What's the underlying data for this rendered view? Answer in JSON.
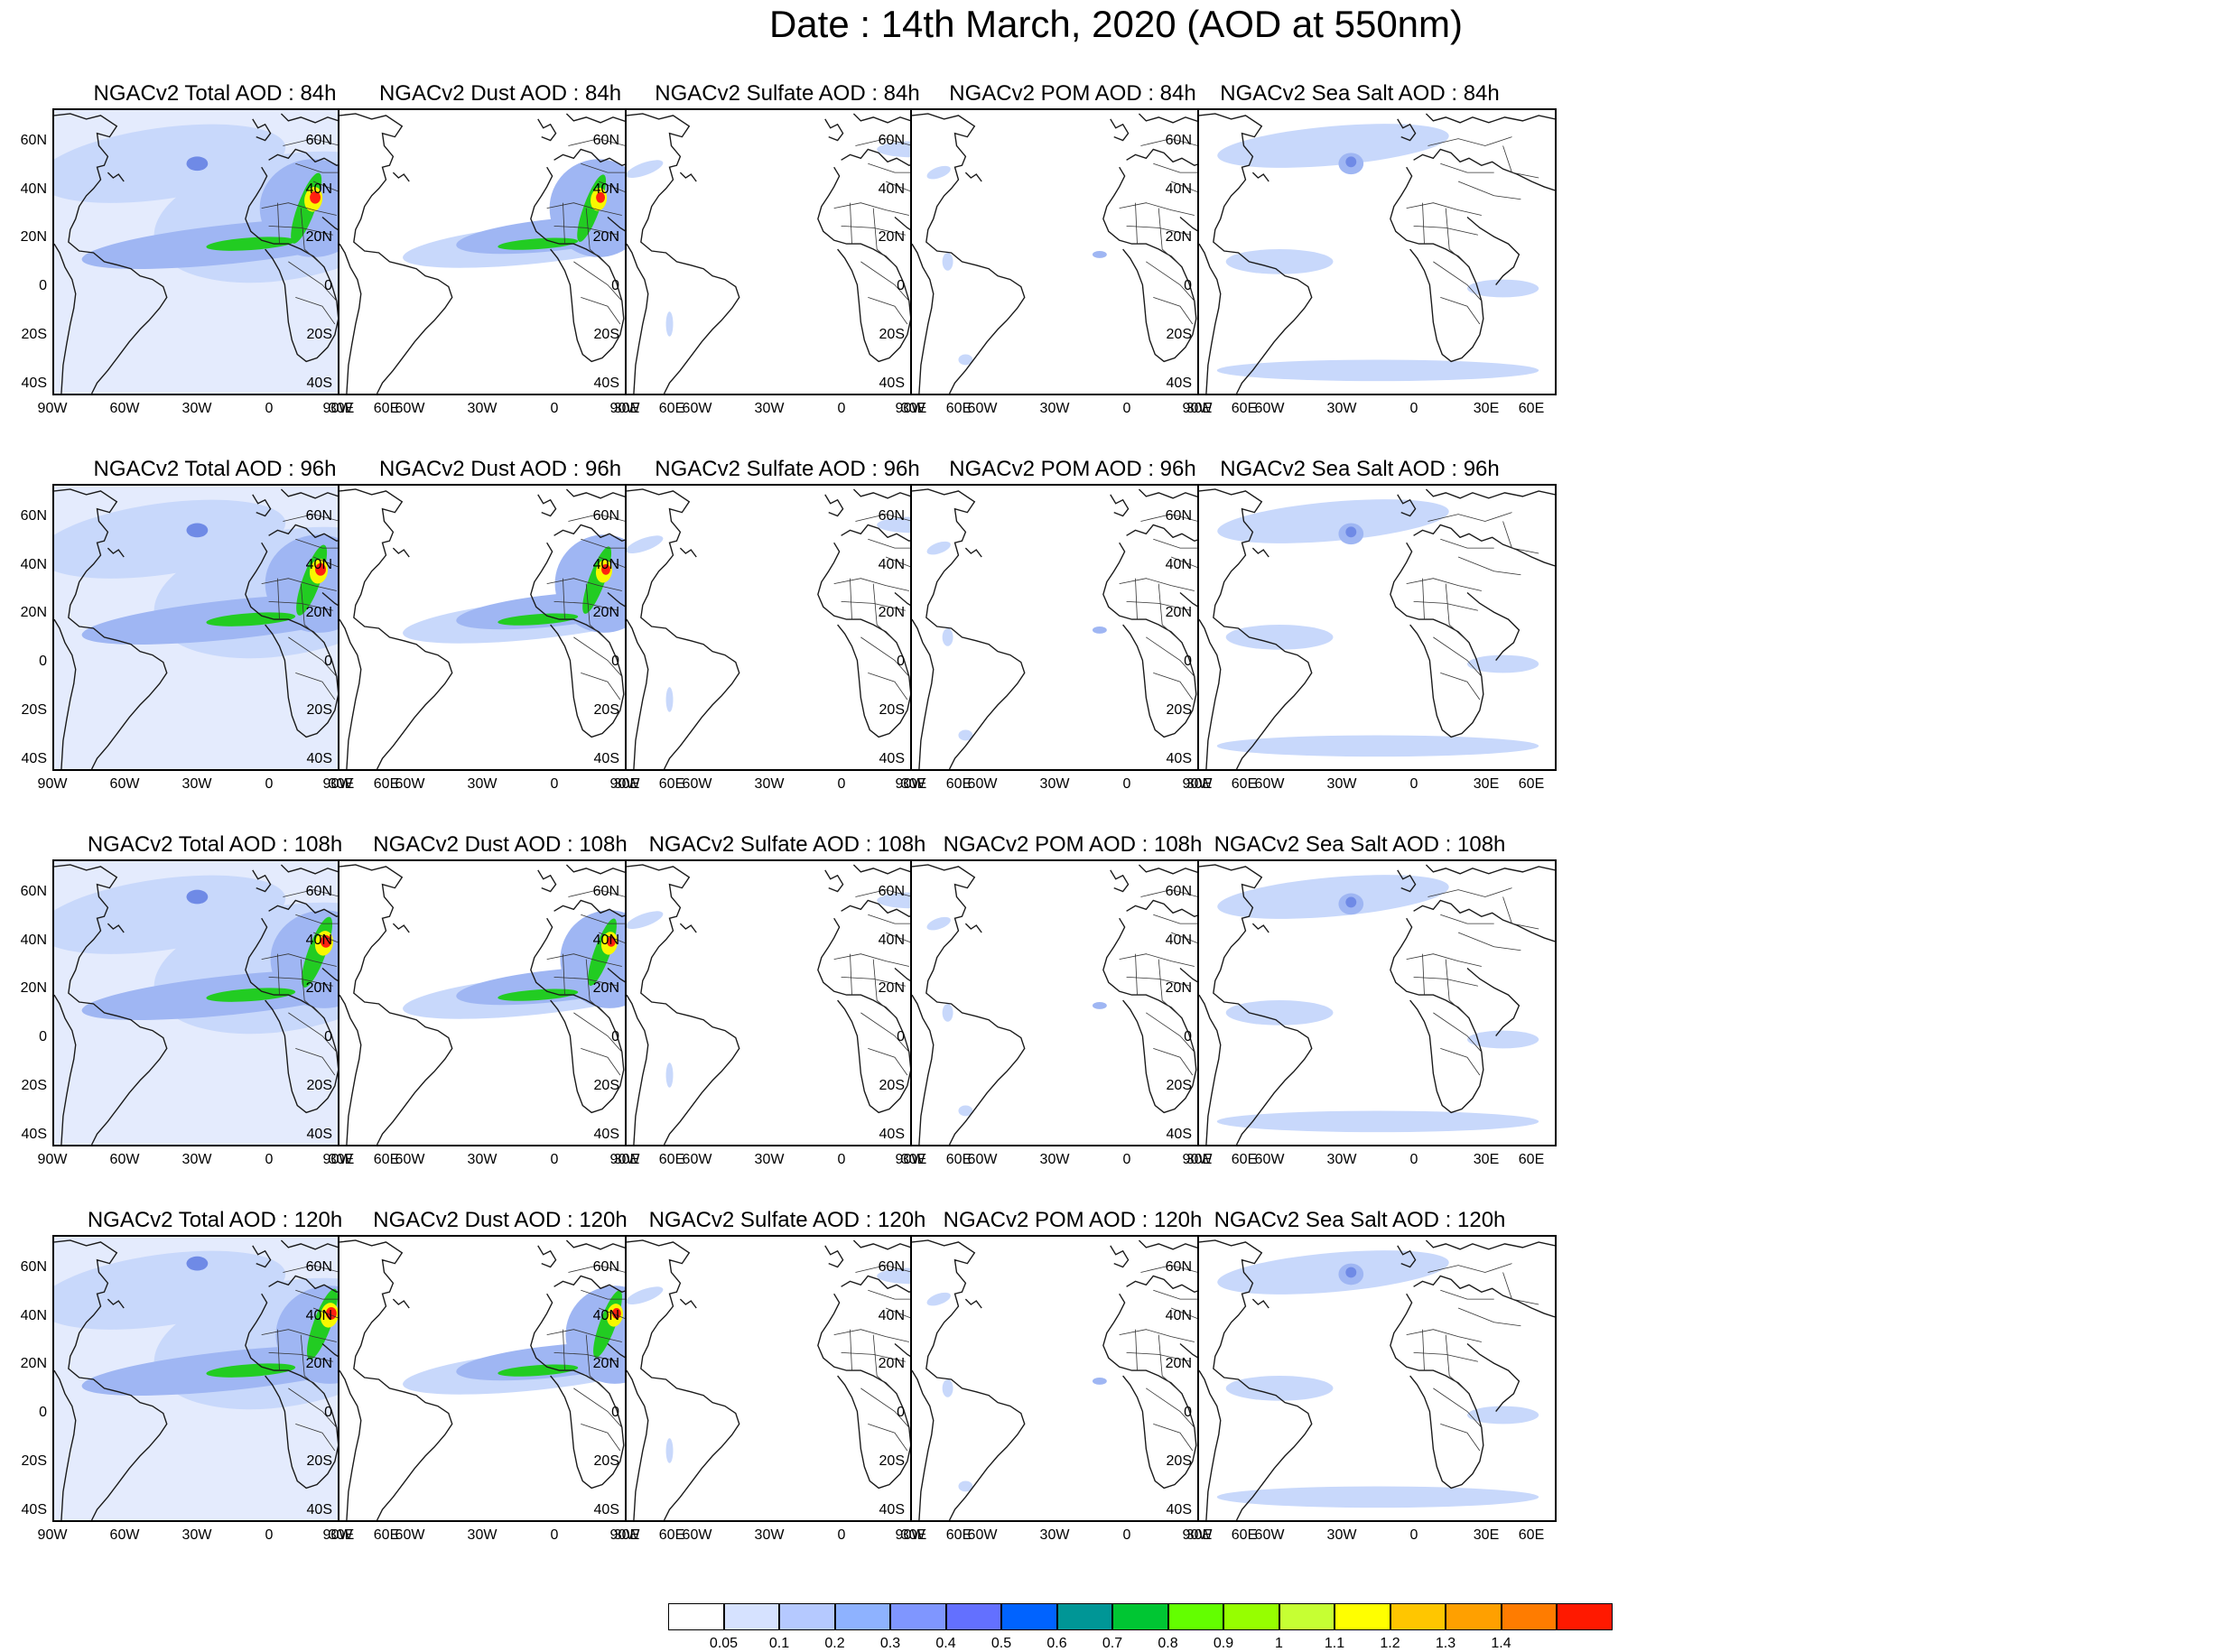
{
  "title": "Date : 14th March, 2020 (AOD at 550nm)",
  "lat_labels": [
    "60N",
    "40N",
    "20N",
    "0",
    "20S",
    "40S"
  ],
  "lon_labels": [
    "90W",
    "60W",
    "30W",
    "0",
    "30E",
    "60E"
  ],
  "colors": {
    "land_outline": "#1a1a1a",
    "light_blue": "#c8d8fb",
    "mid_blue": "#9fb6f3",
    "blue": "#6f8ae6",
    "green": "#22cc22",
    "yellow": "#f8f800",
    "red": "#ff2010"
  },
  "rows": [
    {
      "panels": [
        {
          "label": "NGACv2 Total AOD : 84h",
          "variable": "total"
        },
        {
          "label": "NGACv2 Dust AOD : 84h",
          "variable": "dust"
        },
        {
          "label": "NGACv2 Sulfate AOD : 84h",
          "variable": "sulfate"
        },
        {
          "label": "NGACv2 POM AOD : 84h",
          "variable": "pom"
        },
        {
          "label": "NGACv2 Sea Salt AOD : 84h",
          "variable": "seasalt"
        }
      ]
    },
    {
      "panels": [
        {
          "label": "NGACv2 Total AOD : 96h",
          "variable": "total"
        },
        {
          "label": "NGACv2 Dust AOD : 96h",
          "variable": "dust"
        },
        {
          "label": "NGACv2 Sulfate AOD : 96h",
          "variable": "sulfate"
        },
        {
          "label": "NGACv2 POM AOD : 96h",
          "variable": "pom"
        },
        {
          "label": "NGACv2 Sea Salt AOD : 96h",
          "variable": "seasalt"
        }
      ]
    },
    {
      "panels": [
        {
          "label": "NGACv2 Total AOD : 108h",
          "variable": "total"
        },
        {
          "label": "NGACv2 Dust AOD : 108h",
          "variable": "dust"
        },
        {
          "label": "NGACv2 Sulfate AOD : 108h",
          "variable": "sulfate"
        },
        {
          "label": "NGACv2 POM AOD : 108h",
          "variable": "pom"
        },
        {
          "label": "NGACv2 Sea Salt AOD : 108h",
          "variable": "seasalt"
        }
      ]
    },
    {
      "panels": [
        {
          "label": "NGACv2 Total AOD : 120h",
          "variable": "total"
        },
        {
          "label": "NGACv2 Dust AOD : 120h",
          "variable": "dust"
        },
        {
          "label": "NGACv2 Sulfate AOD : 120h",
          "variable": "sulfate"
        },
        {
          "label": "NGACv2 POM AOD : 120h",
          "variable": "pom"
        },
        {
          "label": "NGACv2 Sea Salt  AOD : 120h",
          "variable": "seasalt"
        }
      ]
    }
  ],
  "colorbar": {
    "labels": [
      "0.05",
      "0.1",
      "0.2",
      "0.3",
      "0.4",
      "0.5",
      "0.6",
      "0.7",
      "0.8",
      "0.9",
      "1",
      "1.1",
      "1.2",
      "1.3",
      "1.4"
    ],
    "colors": [
      "#ffffff",
      "#d6e2ff",
      "#b5c9ff",
      "#8eb2ff",
      "#7f96ff",
      "#6370ff",
      "#0063ff",
      "#009696",
      "#00c633",
      "#63ff00",
      "#96ff00",
      "#c6ff33",
      "#ffff00",
      "#ffc600",
      "#ffa000",
      "#ff7c00",
      "#ff1900"
    ]
  }
}
